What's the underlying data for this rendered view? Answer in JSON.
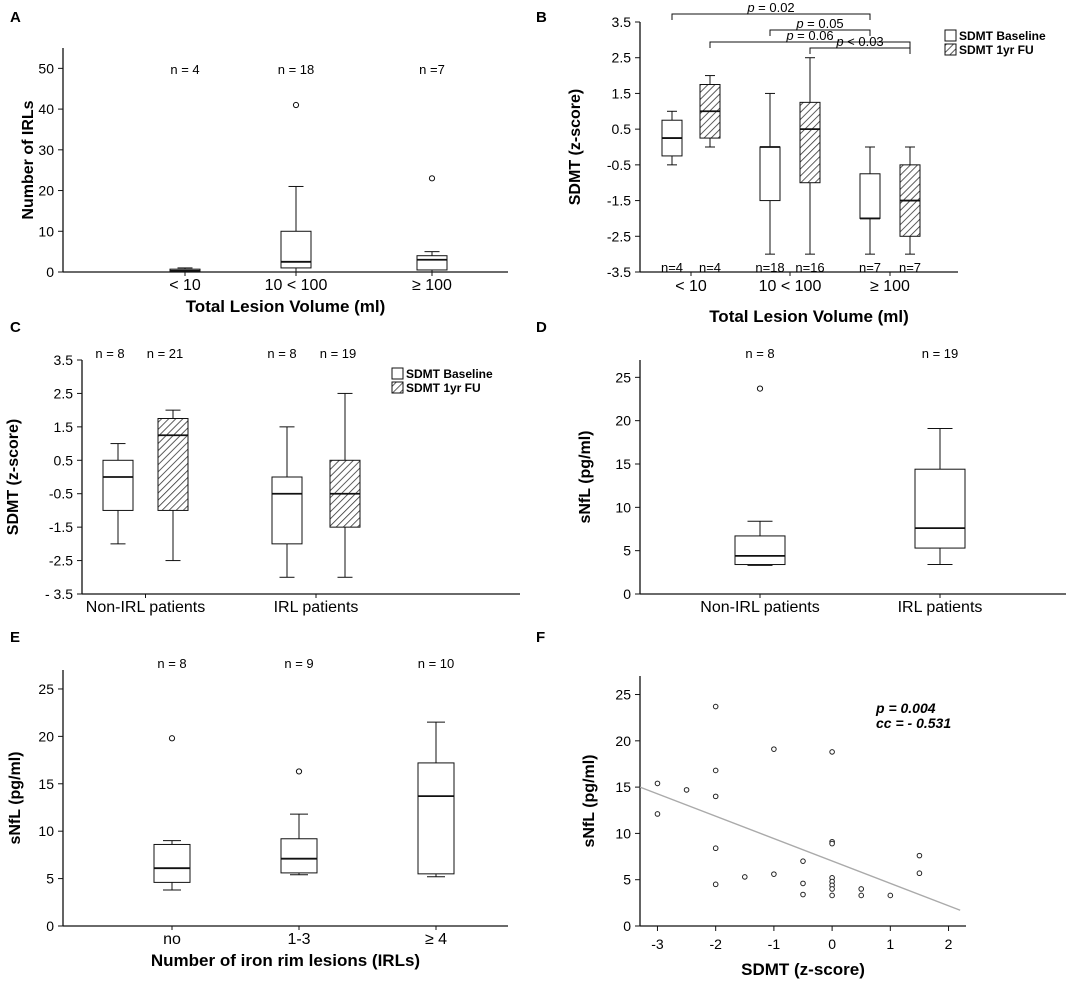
{
  "figure": {
    "panels": [
      {
        "id": "A",
        "letter": "A"
      },
      {
        "id": "B",
        "letter": "B"
      },
      {
        "id": "C",
        "letter": "C"
      },
      {
        "id": "D",
        "letter": "D"
      },
      {
        "id": "E",
        "letter": "E"
      },
      {
        "id": "F",
        "letter": "F"
      }
    ]
  },
  "colors": {
    "axis": "#111111",
    "box_fill": "#ffffff",
    "hatch": "#333333",
    "regression": "#aaaaaa"
  },
  "chart_data": [
    {
      "id": "A",
      "type": "box",
      "xlabel": "Total Lesion Volume (ml)",
      "ylabel": "Number of IRLs",
      "ylim": [
        0,
        55
      ],
      "yticks": [
        0,
        10,
        20,
        30,
        40,
        50
      ],
      "categories": [
        "< 10",
        "10 < 100",
        "≥ 100"
      ],
      "n_labels": [
        "n = 4",
        "n = 18",
        "n =7"
      ],
      "boxes": [
        {
          "group": "< 10",
          "series": "IRLs",
          "min": 0,
          "q1": 0,
          "median": 0.3,
          "q3": 0.7,
          "max": 1,
          "outliers": []
        },
        {
          "group": "10 < 100",
          "series": "IRLs",
          "min": 0,
          "q1": 1,
          "median": 2.5,
          "q3": 10,
          "max": 21,
          "outliers": [
            41
          ]
        },
        {
          "group": "≥ 100",
          "series": "IRLs",
          "min": 0,
          "q1": 0.5,
          "median": 3,
          "q3": 4,
          "max": 5,
          "outliers": [
            23
          ]
        }
      ]
    },
    {
      "id": "B",
      "type": "box",
      "xlabel": "Total Lesion Volume (ml)",
      "ylabel": "SDMT (z-score)",
      "ylim": [
        -3.5,
        3.5
      ],
      "yticks": [
        3.5,
        2.5,
        1.5,
        0.5,
        -0.5,
        -1.5,
        -2.5,
        -3.5
      ],
      "ytick_labels": [
        "3.5",
        "2.5",
        "1.5",
        "0.5",
        "-0.5",
        "-1.5",
        "-2.5",
        "-3.5"
      ],
      "categories": [
        "< 10",
        "10 < 100",
        "≥ 100"
      ],
      "legend": [
        "SDMT Baseline",
        "SDMT 1yr FU"
      ],
      "n_labels": [
        "n=4",
        "n=4",
        "n=18",
        "n=16",
        "n=7",
        "n=7"
      ],
      "boxes": [
        {
          "group": "< 10",
          "series": "SDMT Baseline",
          "min": -0.5,
          "q1": -0.25,
          "median": 0.25,
          "q3": 0.75,
          "max": 1.0,
          "outliers": []
        },
        {
          "group": "< 10",
          "series": "SDMT 1yr FU",
          "min": 0,
          "q1": 0.25,
          "median": 1.0,
          "q3": 1.75,
          "max": 2.0,
          "outliers": []
        },
        {
          "group": "10 < 100",
          "series": "SDMT Baseline",
          "min": -3.0,
          "q1": -1.5,
          "median": 0,
          "q3": 0,
          "max": 1.5,
          "outliers": []
        },
        {
          "group": "10 < 100",
          "series": "SDMT 1yr FU",
          "min": -3.0,
          "q1": -1.0,
          "median": 0.5,
          "q3": 1.25,
          "max": 2.5,
          "outliers": []
        },
        {
          "group": "≥ 100",
          "series": "SDMT Baseline",
          "min": -3.0,
          "q1": -2.0,
          "median": -2.0,
          "q3": -0.75,
          "max": 0,
          "outliers": []
        },
        {
          "group": "≥ 100",
          "series": "SDMT 1yr FU",
          "min": -3.0,
          "q1": -2.5,
          "median": -1.5,
          "q3": -0.5,
          "max": 0,
          "outliers": []
        }
      ],
      "significance": [
        {
          "p_symbol": "p",
          "value_text": " = 0.02",
          "from_box": 0,
          "to_box": 4,
          "level": 0
        },
        {
          "p_symbol": "p",
          "value_text": " = 0.05",
          "from_box": 2,
          "to_box": 4,
          "level": 1
        },
        {
          "p_symbol": "p",
          "value_text": " = 0.06",
          "from_box": 1,
          "to_box": 5,
          "level": 2
        },
        {
          "p_symbol": "p",
          "value_text": " < 0.03",
          "from_box": 3,
          "to_box": 5,
          "level": 3
        }
      ]
    },
    {
      "id": "C",
      "type": "box",
      "xlabel": "",
      "ylabel": "SDMT (z-score)",
      "ylim": [
        -3.5,
        3.5
      ],
      "yticks": [
        3.5,
        2.5,
        1.5,
        0.5,
        -0.5,
        -1.5,
        -2.5,
        -3.5
      ],
      "ytick_labels": [
        "3.5",
        "2.5",
        "1.5",
        "0.5",
        "-0.5",
        "-1.5",
        "-2.5",
        "- 3.5"
      ],
      "categories": [
        "Non-IRL patients",
        "IRL patients"
      ],
      "legend": [
        "SDMT Baseline",
        "SDMT 1yr FU"
      ],
      "n_labels": [
        "n = 8",
        "n = 21",
        "n = 8",
        "n = 19"
      ],
      "boxes": [
        {
          "group": "Non-IRL patients",
          "series": "SDMT Baseline",
          "min": -2.0,
          "q1": -1.0,
          "median": 0,
          "q3": 0.5,
          "max": 1.0,
          "outliers": []
        },
        {
          "group": "Non-IRL patients",
          "series": "SDMT 1yr FU",
          "min": -2.5,
          "q1": -1.0,
          "median": 1.25,
          "q3": 1.75,
          "max": 2.0,
          "outliers": []
        },
        {
          "group": "IRL patients",
          "series": "SDMT Baseline",
          "min": -3.0,
          "q1": -2.0,
          "median": -0.5,
          "q3": 0,
          "max": 1.5,
          "outliers": []
        },
        {
          "group": "IRL patients",
          "series": "SDMT 1yr FU",
          "min": -3.0,
          "q1": -1.5,
          "median": -0.5,
          "q3": 0.5,
          "max": 2.5,
          "outliers": []
        }
      ]
    },
    {
      "id": "D",
      "type": "box",
      "xlabel": "",
      "ylabel": "sNfL (pg/ml)",
      "ylim": [
        0,
        27
      ],
      "yticks": [
        0,
        5,
        10,
        15,
        20,
        25
      ],
      "categories": [
        "Non-IRL patients",
        "IRL patients"
      ],
      "n_labels": [
        "n = 8",
        "n = 19"
      ],
      "boxes": [
        {
          "group": "Non-IRL patients",
          "series": "sNfL",
          "min": 3.3,
          "q1": 3.4,
          "median": 4.4,
          "q3": 6.7,
          "max": 8.4,
          "outliers": [
            23.7
          ]
        },
        {
          "group": "IRL patients",
          "series": "sNfL",
          "min": 3.4,
          "q1": 5.3,
          "median": 7.6,
          "q3": 14.4,
          "max": 19.1,
          "outliers": []
        }
      ]
    },
    {
      "id": "E",
      "type": "box",
      "xlabel": "Number of iron rim lesions (IRLs)",
      "ylabel": "sNfL (pg/ml)",
      "ylim": [
        0,
        27
      ],
      "yticks": [
        0,
        5,
        10,
        15,
        20,
        25
      ],
      "categories": [
        "no",
        "1-3",
        "≥ 4"
      ],
      "n_labels": [
        "n = 8",
        "n = 9",
        "n = 10"
      ],
      "boxes": [
        {
          "group": "no",
          "series": "sNfL",
          "min": 3.8,
          "q1": 4.6,
          "median": 6.1,
          "q3": 8.6,
          "max": 9.0,
          "outliers": [
            19.8
          ]
        },
        {
          "group": "1-3",
          "series": "sNfL",
          "min": 5.4,
          "q1": 5.6,
          "median": 7.1,
          "q3": 9.2,
          "max": 11.8,
          "outliers": [
            16.3
          ]
        },
        {
          "group": "≥ 4",
          "series": "sNfL",
          "min": 5.2,
          "q1": 5.5,
          "median": 13.7,
          "q3": 17.2,
          "max": 21.5,
          "outliers": []
        }
      ]
    },
    {
      "id": "F",
      "type": "scatter",
      "xlabel": "SDMT (z-score)",
      "ylabel": "sNfL (pg/ml)",
      "xlim": [
        -3.3,
        2.3
      ],
      "ylim": [
        0,
        27
      ],
      "xticks": [
        -3,
        -2,
        -1,
        0,
        1,
        2
      ],
      "yticks": [
        0,
        5,
        10,
        15,
        20,
        25
      ],
      "annotation": {
        "p_text": "p = 0.004",
        "cc_text": "cc = - 0.531"
      },
      "points": [
        {
          "x": -3.0,
          "y": 15.4
        },
        {
          "x": -3.0,
          "y": 12.1
        },
        {
          "x": -2.5,
          "y": 14.7
        },
        {
          "x": -2.0,
          "y": 23.7
        },
        {
          "x": -2.0,
          "y": 16.8
        },
        {
          "x": -2.0,
          "y": 14.0
        },
        {
          "x": -2.0,
          "y": 8.4
        },
        {
          "x": -2.0,
          "y": 4.5
        },
        {
          "x": -1.5,
          "y": 5.3
        },
        {
          "x": -1.0,
          "y": 19.1
        },
        {
          "x": -1.0,
          "y": 5.6
        },
        {
          "x": -0.5,
          "y": 7.0
        },
        {
          "x": -0.5,
          "y": 4.6
        },
        {
          "x": -0.5,
          "y": 3.4
        },
        {
          "x": 0,
          "y": 18.8
        },
        {
          "x": 0,
          "y": 9.1
        },
        {
          "x": 0,
          "y": 8.9
        },
        {
          "x": 0,
          "y": 5.2
        },
        {
          "x": 0,
          "y": 4.8
        },
        {
          "x": 0,
          "y": 4.4
        },
        {
          "x": 0,
          "y": 4.0
        },
        {
          "x": 0,
          "y": 3.3
        },
        {
          "x": 0.5,
          "y": 4.0
        },
        {
          "x": 0.5,
          "y": 3.3
        },
        {
          "x": 1.0,
          "y": 3.3
        },
        {
          "x": 1.5,
          "y": 7.6
        },
        {
          "x": 1.5,
          "y": 5.7
        }
      ],
      "regression": {
        "x0": -3.3,
        "y0": 15.0,
        "x1": 2.2,
        "y1": 1.7
      }
    }
  ]
}
